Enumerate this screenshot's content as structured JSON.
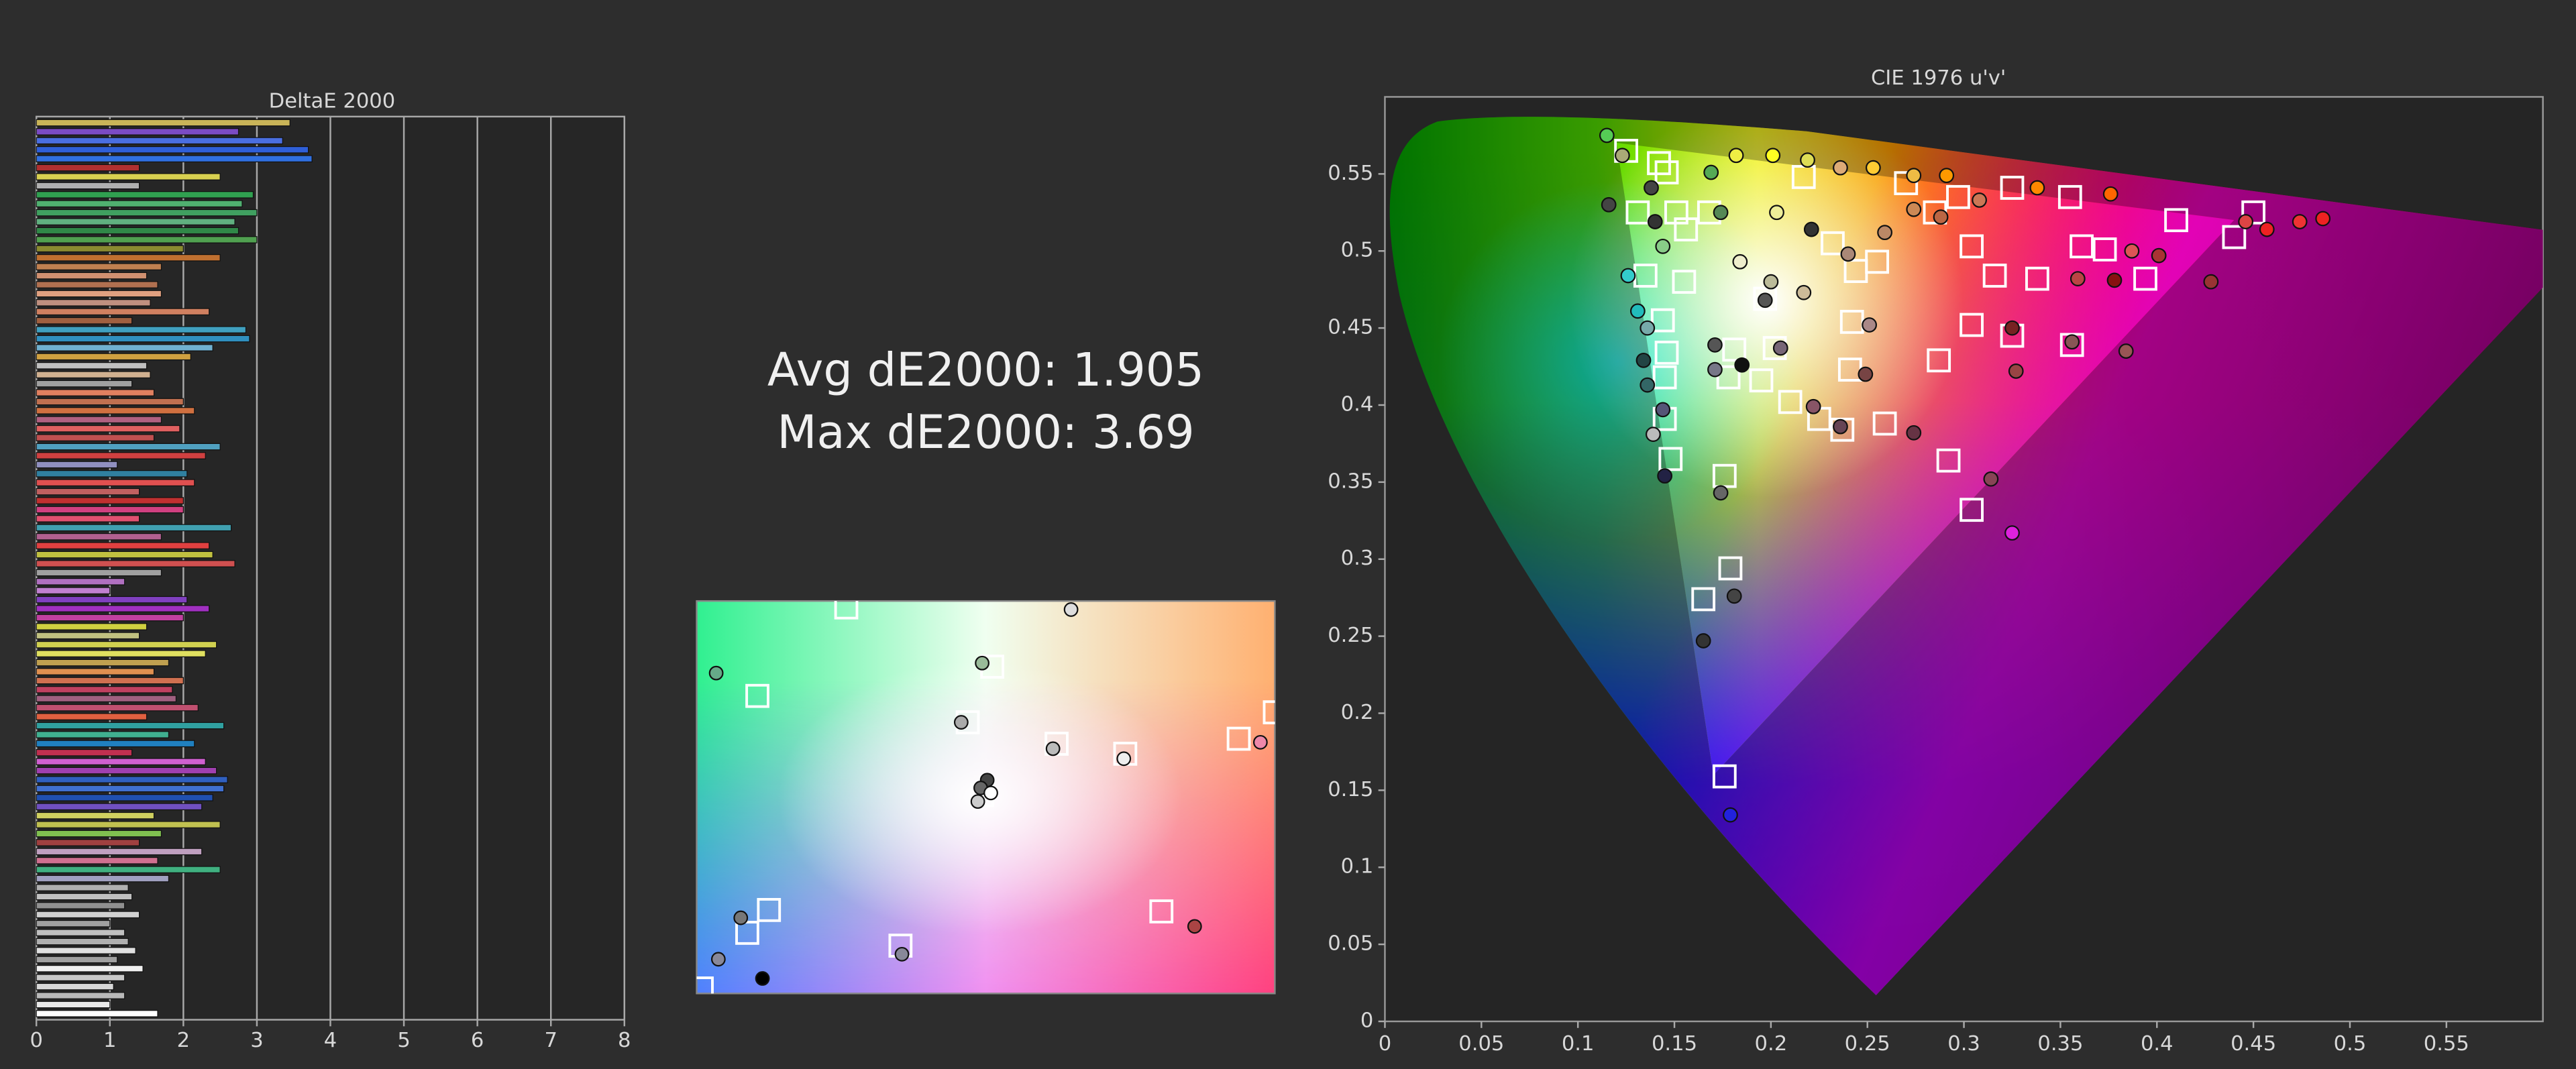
{
  "annotations": [
    "Avg dE2000: 1.905",
    "Max dE2000: 3.69"
  ],
  "chart_data": [
    {
      "type": "bar",
      "orientation": "horizontal",
      "title": "DeltaE 2000",
      "xlim": [
        0,
        8
      ],
      "xticks": [
        0,
        1,
        2,
        3,
        4,
        5,
        6,
        7,
        8
      ],
      "grid": true,
      "values": [
        3.45,
        2.75,
        3.35,
        3.7,
        3.75,
        1.4,
        2.5,
        1.4,
        2.95,
        2.8,
        3.0,
        2.7,
        2.75,
        3.0,
        2.0,
        2.5,
        1.7,
        1.5,
        1.65,
        1.7,
        1.55,
        2.35,
        1.3,
        2.85,
        2.9,
        2.4,
        2.1,
        1.5,
        1.55,
        1.3,
        1.6,
        2.0,
        2.15,
        1.7,
        1.95,
        1.6,
        2.5,
        2.3,
        1.1,
        2.05,
        2.15,
        1.4,
        2.0,
        2.0,
        1.4,
        2.65,
        1.7,
        2.35,
        2.4,
        2.7,
        1.7,
        1.2,
        1.0,
        2.05,
        2.35,
        2.0,
        1.5,
        1.4,
        2.45,
        2.3,
        1.8,
        1.6,
        2.0,
        1.85,
        1.9,
        2.2,
        1.5,
        2.55,
        1.8,
        2.15,
        1.3,
        2.3,
        2.45,
        2.6,
        2.55,
        2.4,
        2.25,
        1.6,
        2.5,
        1.7,
        1.4,
        2.25,
        1.65,
        2.5,
        1.8,
        1.25,
        1.3,
        1.2,
        1.4,
        1.0,
        1.2,
        1.25,
        1.35,
        1.1,
        1.45,
        1.2,
        1.05,
        1.2,
        1.0,
        1.65
      ],
      "colors": [
        "#c9b458",
        "#7b4bc4",
        "#4a6ee0",
        "#2f5fd8",
        "#3070e0",
        "#b03030",
        "#d8d050",
        "#b0b0b0",
        "#30a050",
        "#50b070",
        "#40a060",
        "#60b080",
        "#308848",
        "#50a050",
        "#8a8a30",
        "#c07030",
        "#c08050",
        "#d09070",
        "#b07050",
        "#e0a080",
        "#c09080",
        "#d08060",
        "#a06040",
        "#40a0c0",
        "#3090c0",
        "#70b0d0",
        "#d0a040",
        "#c0c0c0",
        "#d0b090",
        "#a0a0a0",
        "#e08060",
        "#c07050",
        "#d07040",
        "#b06080",
        "#e06060",
        "#c05050",
        "#50a0c0",
        "#d04040",
        "#9090c0",
        "#3080a0",
        "#e05050",
        "#c06060",
        "#c03030",
        "#d04080",
        "#e05070",
        "#40a0b0",
        "#b06090",
        "#e04040",
        "#c0c040",
        "#d05050",
        "#a0a0a0",
        "#b070c0",
        "#c080d0",
        "#8040c0",
        "#a030c0",
        "#c040a0",
        "#d0d040",
        "#c0c080",
        "#d0d050",
        "#e0e060",
        "#c0a050",
        "#e09050",
        "#d07050",
        "#c04060",
        "#a06080",
        "#c05070",
        "#e06040",
        "#30a0a0",
        "#40b090",
        "#2080c0",
        "#c03050",
        "#d060d0",
        "#a040b0",
        "#3060c0",
        "#4070d0",
        "#2050b0",
        "#7050c0",
        "#d0d060",
        "#c0c050",
        "#80c050",
        "#a04040",
        "#c0a0c0",
        "#d07090",
        "#40b080",
        "#a0a0c0",
        "#b0b0b0",
        "#c0c0c0",
        "#909090",
        "#d0d0d0",
        "#a0a0a0",
        "#c0c0c0",
        "#b0b0b0",
        "#e0e0e0",
        "#a0a0a0",
        "#f0f0f0",
        "#c8c8c8",
        "#d8d8d8",
        "#b8b8b8",
        "#e8e8e8",
        "#ffffff"
      ]
    },
    {
      "type": "scatter",
      "xlim": [
        0.16,
        0.24
      ],
      "ylim": [
        0.44,
        0.495
      ],
      "series": [
        {
          "marker": "square",
          "color": "#ffffff",
          "x": [
            0.1807,
            0.1684,
            0.2009,
            0.1975,
            0.2098,
            0.2193,
            0.235,
            0.24,
            0.1995,
            0.17,
            0.167,
            0.1882,
            0.2243,
            0.1607
          ],
          "y": [
            0.4941,
            0.4817,
            0.4858,
            0.478,
            0.475,
            0.4736,
            0.4757,
            0.4794,
            0.4678,
            0.4517,
            0.4485,
            0.4467,
            0.4515,
            0.4407
          ]
        },
        {
          "marker": "circle",
          "x": [
            0.1627,
            0.2118,
            0.1995,
            0.1966,
            0.2093,
            0.2191,
            0.238,
            0.2002,
            0.1993,
            0.1989,
            0.2007,
            0.1661,
            0.163,
            0.1884,
            0.2289,
            0.1691
          ],
          "y": [
            0.4849,
            0.4938,
            0.4863,
            0.478,
            0.4743,
            0.4729,
            0.4752,
            0.4699,
            0.4688,
            0.4669,
            0.4681,
            0.4506,
            0.4448,
            0.4455,
            0.4494,
            0.4421
          ],
          "colors": [
            "#6a8",
            "#ddd",
            "#9b9",
            "#aaa",
            "#bbb",
            "#eee",
            "#e8a",
            "#444",
            "#666",
            "#ccc",
            "#fff",
            "#777",
            "#889",
            "#889",
            "#a44",
            "#000"
          ]
        }
      ]
    },
    {
      "type": "scatter",
      "title": "CIE 1976 u'v'",
      "xlim": [
        0,
        0.6
      ],
      "ylim": [
        0,
        0.6
      ],
      "xticks": [
        0,
        0.05,
        0.1,
        0.15,
        0.2,
        0.25,
        0.3,
        0.35,
        0.4,
        0.45,
        0.5,
        0.55
      ],
      "yticks": [
        0,
        0.05,
        0.1,
        0.15,
        0.2,
        0.25,
        0.3,
        0.35,
        0.4,
        0.45,
        0.5,
        0.55
      ],
      "series": [
        {
          "marker": "square",
          "color": "#ffffff",
          "x": [
            0.125,
            0.142,
            0.146,
            0.131,
            0.151,
            0.135,
            0.155,
            0.144,
            0.146,
            0.145,
            0.145,
            0.148,
            0.156,
            0.168,
            0.181,
            0.178,
            0.202,
            0.195,
            0.21,
            0.225,
            0.237,
            0.259,
            0.165,
            0.176,
            0.179,
            0.176,
            0.197,
            0.217,
            0.232,
            0.244,
            0.255,
            0.27,
            0.285,
            0.297,
            0.304,
            0.316,
            0.325,
            0.338,
            0.355,
            0.361,
            0.373,
            0.394,
            0.41,
            0.44,
            0.45,
            0.242,
            0.241,
            0.287,
            0.304,
            0.325,
            0.356,
            0.292,
            0.304
          ],
          "y": [
            0.565,
            0.557,
            0.551,
            0.525,
            0.525,
            0.484,
            0.48,
            0.455,
            0.434,
            0.418,
            0.391,
            0.365,
            0.514,
            0.525,
            0.436,
            0.418,
            0.437,
            0.416,
            0.402,
            0.391,
            0.384,
            0.388,
            0.274,
            0.354,
            0.294,
            0.159,
            0.469,
            0.548,
            0.505,
            0.487,
            0.493,
            0.544,
            0.525,
            0.535,
            0.503,
            0.484,
            0.541,
            0.482,
            0.535,
            0.503,
            0.501,
            0.482,
            0.52,
            0.509,
            0.525,
            0.454,
            0.423,
            0.429,
            0.452,
            0.445,
            0.439,
            0.364,
            0.332
          ]
        },
        {
          "marker": "circle",
          "x": [
            0.115,
            0.116,
            0.123,
            0.126,
            0.131,
            0.136,
            0.134,
            0.136,
            0.139,
            0.145,
            0.138,
            0.14,
            0.144,
            0.144,
            0.169,
            0.174,
            0.171,
            0.171,
            0.174,
            0.185,
            0.182,
            0.201,
            0.219,
            0.236,
            0.253,
            0.274,
            0.291,
            0.338,
            0.376,
            0.203,
            0.221,
            0.184,
            0.2,
            0.217,
            0.24,
            0.259,
            0.274,
            0.288,
            0.308,
            0.325,
            0.327,
            0.356,
            0.359,
            0.378,
            0.387,
            0.401,
            0.428,
            0.384,
            0.205,
            0.222,
            0.236,
            0.249,
            0.274,
            0.314,
            0.251,
            0.325,
            0.165,
            0.181,
            0.179,
            0.457,
            0.474,
            0.486,
            0.446,
            0.197
          ],
          "y": [
            0.575,
            0.53,
            0.562,
            0.484,
            0.461,
            0.45,
            0.429,
            0.413,
            0.381,
            0.354,
            0.541,
            0.519,
            0.503,
            0.397,
            0.551,
            0.525,
            0.439,
            0.423,
            0.343,
            0.426,
            0.562,
            0.562,
            0.559,
            0.554,
            0.554,
            0.549,
            0.549,
            0.541,
            0.537,
            0.525,
            0.514,
            0.493,
            0.48,
            0.473,
            0.498,
            0.512,
            0.527,
            0.522,
            0.533,
            0.45,
            0.422,
            0.441,
            0.482,
            0.481,
            0.5,
            0.497,
            0.48,
            0.435,
            0.437,
            0.399,
            0.386,
            0.42,
            0.382,
            0.352,
            0.452,
            0.317,
            0.247,
            0.276,
            0.134,
            0.514,
            0.519,
            0.521,
            0.519,
            0.468
          ],
          "colors": [
            "#5c5",
            "#444",
            "#aa7",
            "#3cc",
            "#2bb",
            "#7aa",
            "#244",
            "#366",
            "#bbb",
            "#224",
            "#444",
            "#333",
            "#8c8",
            "#557",
            "#5a5",
            "#585",
            "#555",
            "#778",
            "#666",
            "#111",
            "#ee4",
            "#ff2",
            "#dd5",
            "#da7",
            "#fc3",
            "#eb4",
            "#f90",
            "#f80",
            "#f60",
            "#ee9",
            "#333",
            "#eec",
            "#bb9",
            "#cb9",
            "#a87",
            "#b86",
            "#c85",
            "#b64",
            "#c75",
            "#722",
            "#944",
            "#855",
            "#b44",
            "#811",
            "#d55",
            "#a33",
            "#933",
            "#955",
            "#767",
            "#856",
            "#645",
            "#744",
            "#634",
            "#845",
            "#a88",
            "#d2d",
            "#333",
            "#444",
            "#22d",
            "#e22",
            "#e33",
            "#e22",
            "#d44",
            "#555"
          ]
        }
      ]
    }
  ]
}
